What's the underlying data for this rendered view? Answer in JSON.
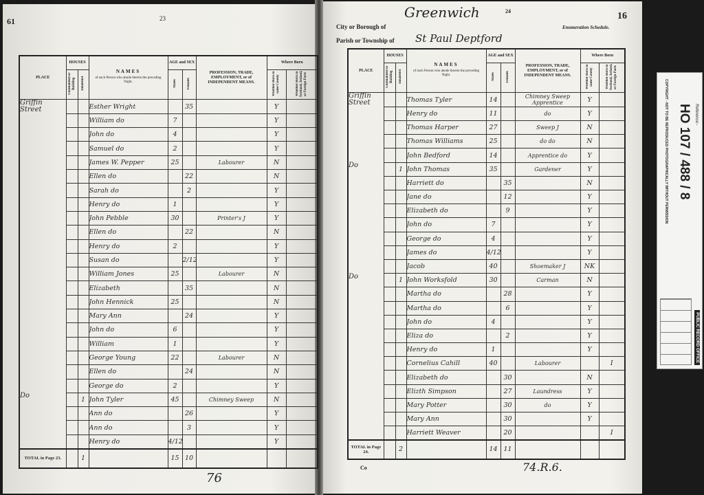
{
  "left_page": {
    "corner_number": "61",
    "page_number": "23",
    "footer_note": "76",
    "total_label": "TOTAL in Page 23.",
    "totals": {
      "uninhabited": "",
      "inhabited": "1",
      "males": "15",
      "females": "10"
    },
    "places": [
      {
        "row": 0,
        "text": "Griffin Street"
      },
      {
        "row": 21,
        "text": "Do"
      }
    ],
    "rows": [
      {
        "h": "",
        "name": "Esther Wright",
        "m": "",
        "f": "35",
        "prof": "",
        "born": "Y",
        "sc": ""
      },
      {
        "h": "",
        "name": "William do",
        "m": "7",
        "f": "",
        "prof": "",
        "born": "Y",
        "sc": ""
      },
      {
        "h": "",
        "name": "John do",
        "m": "4",
        "f": "",
        "prof": "",
        "born": "Y",
        "sc": ""
      },
      {
        "h": "",
        "name": "Samuel do",
        "m": "2",
        "f": "",
        "prof": "",
        "born": "Y",
        "sc": ""
      },
      {
        "h": "",
        "name": "James W. Pepper",
        "m": "25",
        "f": "",
        "prof": "Labourer",
        "born": "N",
        "sc": ""
      },
      {
        "h": "",
        "name": "Ellen do",
        "m": "",
        "f": "22",
        "prof": "",
        "born": "N",
        "sc": ""
      },
      {
        "h": "",
        "name": "Sarah do",
        "m": "",
        "f": "2",
        "prof": "",
        "born": "Y",
        "sc": ""
      },
      {
        "h": "",
        "name": "Henry do",
        "m": "1",
        "f": "",
        "prof": "",
        "born": "Y",
        "sc": ""
      },
      {
        "h": "",
        "name": "John Pebble",
        "m": "30",
        "f": "",
        "prof": "Printer's J",
        "born": "Y",
        "sc": ""
      },
      {
        "h": "",
        "name": "Ellen do",
        "m": "",
        "f": "22",
        "prof": "",
        "born": "N",
        "sc": ""
      },
      {
        "h": "",
        "name": "Henry do",
        "m": "2",
        "f": "",
        "prof": "",
        "born": "Y",
        "sc": ""
      },
      {
        "h": "",
        "name": "Susan do",
        "m": "",
        "f": "2/12",
        "prof": "",
        "born": "Y",
        "sc": ""
      },
      {
        "h": "",
        "name": "William Jones",
        "m": "25",
        "f": "",
        "prof": "Labourer",
        "born": "N",
        "sc": ""
      },
      {
        "h": "",
        "name": "Elizabeth",
        "m": "",
        "f": "35",
        "prof": "",
        "born": "N",
        "sc": ""
      },
      {
        "h": "",
        "name": "John Hennick",
        "m": "25",
        "f": "",
        "prof": "",
        "born": "N",
        "sc": ""
      },
      {
        "h": "",
        "name": "Mary Ann",
        "m": "",
        "f": "24",
        "prof": "",
        "born": "Y",
        "sc": ""
      },
      {
        "h": "",
        "name": "John do",
        "m": "6",
        "f": "",
        "prof": "",
        "born": "Y",
        "sc": ""
      },
      {
        "h": "",
        "name": "William",
        "m": "1",
        "f": "",
        "prof": "",
        "born": "Y",
        "sc": ""
      },
      {
        "h": "",
        "name": "George Young",
        "m": "22",
        "f": "",
        "prof": "Labourer",
        "born": "N",
        "sc": ""
      },
      {
        "h": "",
        "name": "Ellen do",
        "m": "",
        "f": "24",
        "prof": "",
        "born": "N",
        "sc": ""
      },
      {
        "h": "",
        "name": "George do",
        "m": "2",
        "f": "",
        "prof": "",
        "born": "Y",
        "sc": ""
      },
      {
        "h": "1",
        "name": "John Tyler",
        "m": "45",
        "f": "",
        "prof": "Chimney Sweep",
        "born": "N",
        "sc": ""
      },
      {
        "h": "",
        "name": "Ann do",
        "m": "",
        "f": "26",
        "prof": "",
        "born": "Y",
        "sc": ""
      },
      {
        "h": "",
        "name": "Ann do",
        "m": "",
        "f": "3",
        "prof": "",
        "born": "Y",
        "sc": ""
      },
      {
        "h": "",
        "name": "Henry do",
        "m": "4/12",
        "f": "",
        "prof": "",
        "born": "Y",
        "sc": ""
      }
    ]
  },
  "right_page": {
    "borough_label": "City or Borough of",
    "borough_value": "Greenwich",
    "parish_label": "Parish or Township of",
    "parish_value": "St Paul Deptford",
    "page_number": "24",
    "sheet_number": "16",
    "schedule_label": "Enumeration Schedule.",
    "footer_left": "Co",
    "footer_note": "74.R.6.",
    "total_label": "TOTAL in Page 24.",
    "totals": {
      "uninhabited": "",
      "inhabited": "2",
      "males": "14",
      "females": "11"
    },
    "places": [
      {
        "row": 0,
        "text": "Griffin Street"
      },
      {
        "row": 5,
        "text": "Do"
      },
      {
        "row": 13,
        "text": "Do"
      }
    ],
    "rows": [
      {
        "h": "",
        "name": "Thomas Tyler",
        "m": "14",
        "f": "",
        "prof": "Chimney Sweep Apprentice",
        "born": "Y",
        "sc": ""
      },
      {
        "h": "",
        "name": "Henry do",
        "m": "11",
        "f": "",
        "prof": "do",
        "born": "Y",
        "sc": ""
      },
      {
        "h": "",
        "name": "Thomas Harper",
        "m": "27",
        "f": "",
        "prof": "Sweep J",
        "born": "N",
        "sc": ""
      },
      {
        "h": "",
        "name": "Thomas Williams",
        "m": "25",
        "f": "",
        "prof": "do do",
        "born": "N",
        "sc": ""
      },
      {
        "h": "",
        "name": "John Bedford",
        "m": "14",
        "f": "",
        "prof": "Apprentice do",
        "born": "Y",
        "sc": ""
      },
      {
        "h": "1",
        "name": "John Thomas",
        "m": "35",
        "f": "",
        "prof": "Gardener",
        "born": "Y",
        "sc": ""
      },
      {
        "h": "",
        "name": "Harriett do",
        "m": "",
        "f": "35",
        "prof": "",
        "born": "N",
        "sc": ""
      },
      {
        "h": "",
        "name": "Jane do",
        "m": "",
        "f": "12",
        "prof": "",
        "born": "Y",
        "sc": ""
      },
      {
        "h": "",
        "name": "Elizabeth do",
        "m": "",
        "f": "9",
        "prof": "",
        "born": "Y",
        "sc": ""
      },
      {
        "h": "",
        "name": "John do",
        "m": "7",
        "f": "",
        "prof": "",
        "born": "Y",
        "sc": ""
      },
      {
        "h": "",
        "name": "George do",
        "m": "4",
        "f": "",
        "prof": "",
        "born": "Y",
        "sc": ""
      },
      {
        "h": "",
        "name": "James do",
        "m": "4/12",
        "f": "",
        "prof": "",
        "born": "Y",
        "sc": ""
      },
      {
        "h": "",
        "name": "Jacob",
        "m": "40",
        "f": "",
        "prof": "Shoemaker J",
        "born": "NK",
        "sc": ""
      },
      {
        "h": "1",
        "name": "John Worksfold",
        "m": "30",
        "f": "",
        "prof": "Carman",
        "born": "N",
        "sc": ""
      },
      {
        "h": "",
        "name": "Martha do",
        "m": "",
        "f": "28",
        "prof": "",
        "born": "Y",
        "sc": ""
      },
      {
        "h": "",
        "name": "Martha do",
        "m": "",
        "f": "6",
        "prof": "",
        "born": "Y",
        "sc": ""
      },
      {
        "h": "",
        "name": "John do",
        "m": "4",
        "f": "",
        "prof": "",
        "born": "Y",
        "sc": ""
      },
      {
        "h": "",
        "name": "Eliza do",
        "m": "",
        "f": "2",
        "prof": "",
        "born": "Y",
        "sc": ""
      },
      {
        "h": "",
        "name": "Henry do",
        "m": "1",
        "f": "",
        "prof": "",
        "born": "Y",
        "sc": ""
      },
      {
        "h": "",
        "name": "Cornelius Cahill",
        "m": "40",
        "f": "",
        "prof": "Labourer",
        "born": "",
        "sc": "I"
      },
      {
        "h": "",
        "name": "Elizabeth do",
        "m": "",
        "f": "30",
        "prof": "",
        "born": "N",
        "sc": ""
      },
      {
        "h": "",
        "name": "Elizth Simpson",
        "m": "",
        "f": "27",
        "prof": "Laundress",
        "born": "Y",
        "sc": ""
      },
      {
        "h": "",
        "name": "Mary Potter",
        "m": "",
        "f": "30",
        "prof": "do",
        "born": "Y",
        "sc": ""
      },
      {
        "h": "",
        "name": "Mary Ann",
        "m": "",
        "f": "30",
        "prof": "",
        "born": "Y",
        "sc": ""
      },
      {
        "h": "",
        "name": "Harriett Weaver",
        "m": "",
        "f": "20",
        "prof": "",
        "born": "",
        "sc": "I"
      }
    ]
  },
  "headers": {
    "place": "PLACE",
    "houses": "HOUSES",
    "uninhabited": "Uninhabited or Building",
    "inhabited": "Inhabited",
    "names": "NAMES",
    "names_sub": "of each Person who abode therein the preceding Night.",
    "age": "AGE and SEX",
    "male": "Males",
    "female": "Females",
    "profession": "PROFESSION, TRADE, EMPLOYMENT, or of INDEPENDENT MEANS.",
    "where_born": "Where Born",
    "same_county": "Whether Born in same County",
    "scotland": "Whether Born in Scotland, Ireland, or Foreign Parts"
  },
  "reference_label": {
    "office": "PUBLIC RECORD OFFICE",
    "ref_prefix": "Reference:-",
    "ref": "HO 107 / 488 / 8",
    "copyright": "COPYRIGHT - NOT TO BE REPRODUCED PHOTOGRAPHICALLY WITHOUT PERMISSION"
  }
}
